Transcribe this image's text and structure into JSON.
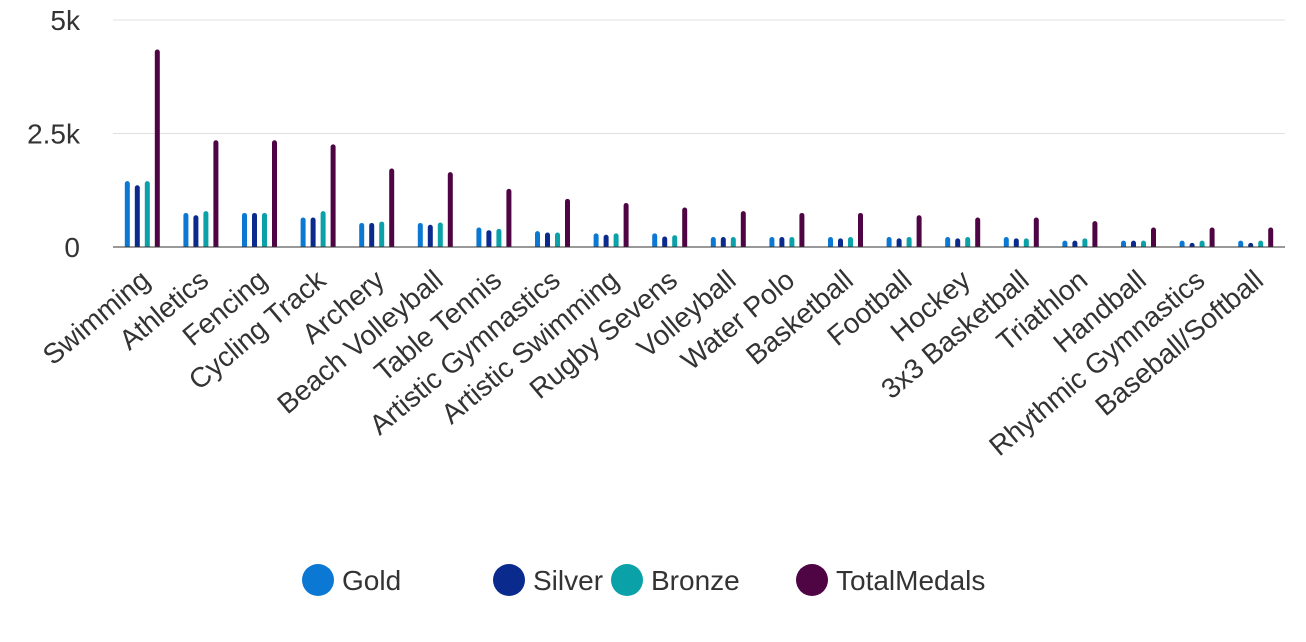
{
  "chart_data": {
    "type": "bar",
    "categories": [
      "Swimming",
      "Athletics",
      "Fencing",
      "Cycling Track",
      "Archery",
      "Beach Volleyball",
      "Table Tennis",
      "Artistic Gymnastics",
      "Artistic Swimming",
      "Rugby Sevens",
      "Volleyball",
      "Water Polo",
      "Basketball",
      "Football",
      "Hockey",
      "3x3 Basketball",
      "Triathlon",
      "Handball",
      "Rhythmic Gymnastics",
      "Baseball/Softball"
    ],
    "series": [
      {
        "name": "Gold",
        "color": "#0b78d4",
        "values": [
          1450,
          750,
          750,
          650,
          530,
          530,
          430,
          350,
          300,
          300,
          220,
          220,
          220,
          220,
          220,
          220,
          140,
          140,
          140,
          140
        ]
      },
      {
        "name": "Silver",
        "color": "#0a2a8e",
        "values": [
          1360,
          700,
          750,
          650,
          530,
          490,
          370,
          320,
          270,
          230,
          220,
          220,
          190,
          190,
          190,
          190,
          140,
          140,
          90,
          90
        ]
      },
      {
        "name": "Bronze",
        "color": "#0aa2a8",
        "values": [
          1450,
          790,
          750,
          790,
          560,
          540,
          400,
          320,
          300,
          260,
          220,
          220,
          220,
          220,
          220,
          190,
          190,
          140,
          140,
          140
        ]
      },
      {
        "name": "TotalMedals",
        "color": "#4f0544",
        "values": [
          4350,
          2350,
          2350,
          2260,
          1730,
          1650,
          1280,
          1060,
          970,
          870,
          790,
          750,
          750,
          700,
          650,
          650,
          570,
          430,
          430,
          430
        ]
      }
    ],
    "yticks": [
      {
        "value": 0,
        "label": "0"
      },
      {
        "value": 2500,
        "label": "2.5k"
      },
      {
        "value": 5000,
        "label": "5k"
      }
    ],
    "ylim": [
      0,
      5000
    ],
    "grid": true,
    "legend_position": "bottom",
    "title": "",
    "xlabel": "",
    "ylabel": ""
  }
}
